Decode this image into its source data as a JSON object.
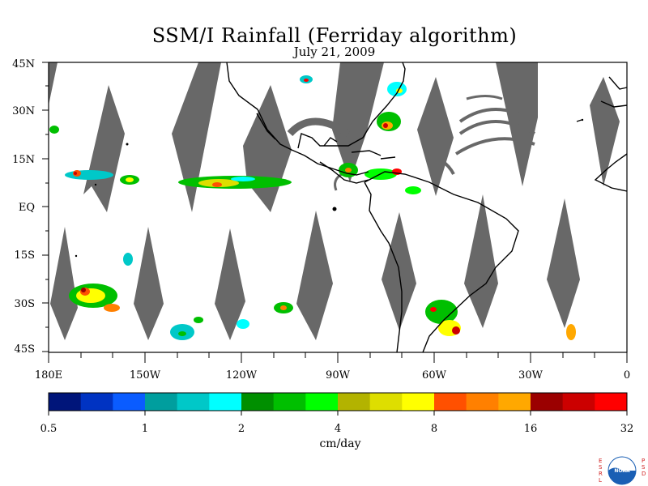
{
  "title": "SSM/I Rainfall (Ferriday algorithm)",
  "subtitle": "July 21, 2009",
  "lat_labels": [
    "45N",
    "30N",
    "15N",
    "EQ",
    "15S",
    "30S",
    "45S"
  ],
  "lon_labels": [
    "180E",
    "150W",
    "120W",
    "90W",
    "60W",
    "30W",
    "0"
  ],
  "colorbar": {
    "ticks": [
      "0.5",
      "1",
      "2",
      "4",
      "8",
      "16",
      "32"
    ],
    "unit": "cm/day",
    "colors": [
      "#00157a",
      "#0033c2",
      "#0a5cff",
      "#009e9e",
      "#00c8c8",
      "#00ffff",
      "#008f00",
      "#00bf00",
      "#00ff00",
      "#b3b300",
      "#dede00",
      "#ffff00",
      "#ff5000",
      "#ff8000",
      "#ffa800",
      "#9b0000",
      "#cc0000",
      "#ff0000"
    ]
  },
  "logo": {
    "left_letters": "ESRL",
    "right_letters": "PSD",
    "center_text": "NOAA"
  },
  "map_colors": {
    "swath_gap": "#686868",
    "land_outline": "#000000"
  }
}
